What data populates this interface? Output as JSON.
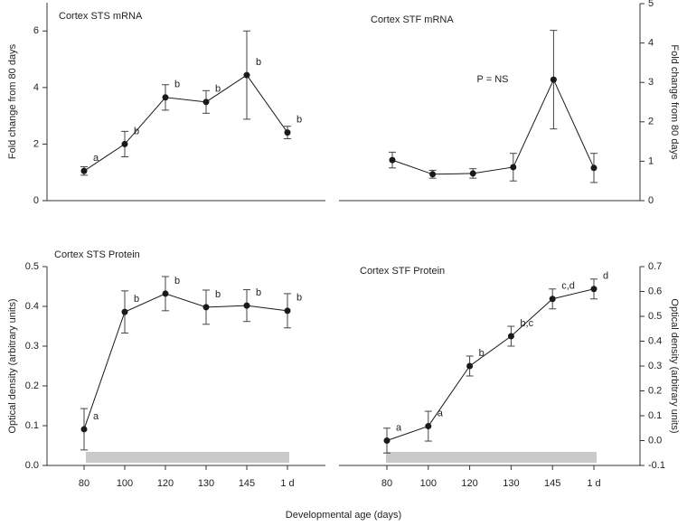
{
  "xlabel": "Developmental age (days)",
  "chart_data": [
    {
      "type": "line",
      "title": "Cortex STS mRNA",
      "ylabel": "Fold change from 80 days",
      "axis_side": "left",
      "categories": [
        null,
        null,
        null,
        null,
        null,
        null
      ],
      "values": [
        1.05,
        2.0,
        3.65,
        3.49,
        4.44,
        2.41
      ],
      "errors": [
        0.15,
        0.45,
        0.45,
        0.4,
        1.56,
        0.22
      ],
      "point_labels": [
        "a",
        "b",
        "b",
        "b",
        "b",
        "b"
      ],
      "color": "#1a1a1a",
      "ylim": [
        0,
        7
      ],
      "yticks": [
        0,
        2,
        4,
        6
      ]
    },
    {
      "type": "line",
      "title": "Cortex STF mRNA",
      "ylabel": "Fold change from 80 days",
      "axis_side": "right",
      "annotation": "P = NS",
      "categories": [
        null,
        null,
        null,
        null,
        null,
        null
      ],
      "values": [
        1.03,
        0.67,
        0.69,
        0.85,
        3.07,
        0.83
      ],
      "errors": [
        0.2,
        0.1,
        0.12,
        0.35,
        1.25,
        0.37
      ],
      "color": "#1a1a1a",
      "ylim": [
        0,
        5
      ],
      "yticks": [
        0,
        1,
        2,
        3,
        4,
        5
      ]
    },
    {
      "type": "line",
      "title": "Cortex STS Protein",
      "ylabel": "Optical density (arbitrary units)",
      "axis_side": "left",
      "categories": [
        "80",
        "100",
        "120",
        "130",
        "145",
        "1 d"
      ],
      "values": [
        0.091,
        0.386,
        0.432,
        0.398,
        0.402,
        0.389
      ],
      "errors": [
        0.052,
        0.053,
        0.043,
        0.043,
        0.04,
        0.043
      ],
      "point_labels": [
        "a",
        "b",
        "b",
        "b",
        "b",
        "b"
      ],
      "color": "#1a1a1a",
      "ylim": [
        0,
        0.5
      ],
      "yticks": [
        {
          "value": 0,
          "label": "0.0"
        },
        0.1,
        0.2,
        0.3,
        0.4,
        0.5
      ]
    },
    {
      "type": "line",
      "title": "Cortex STF Protein",
      "ylabel": "Optical density (arbitrary units)",
      "axis_side": "right",
      "categories": [
        "80",
        "100",
        "120",
        "130",
        "145",
        "1 d"
      ],
      "values": [
        0.0,
        0.058,
        0.3,
        0.42,
        0.57,
        0.61
      ],
      "errors": [
        0.05,
        0.06,
        0.04,
        0.04,
        0.04,
        0.04
      ],
      "point_labels": [
        "a",
        "a",
        "b",
        "b,c",
        "c,d",
        "d"
      ],
      "color": "#1a1a1a",
      "ylim": [
        -0.1,
        0.7
      ],
      "yticks": [
        -0.1,
        {
          "value": 0,
          "label": "0.0"
        },
        0.1,
        0.2,
        0.3,
        0.4,
        0.5,
        0.6,
        0.7
      ]
    }
  ]
}
